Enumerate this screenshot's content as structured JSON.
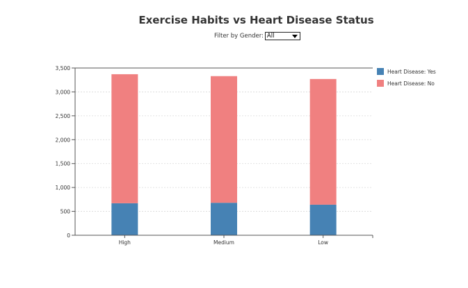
{
  "header": {
    "title": "Exercise Habits vs Heart Disease Status"
  },
  "filter": {
    "label": "Filter by Gender:",
    "selected": "All"
  },
  "colors": {
    "yes": "#4682b4",
    "no": "#f08080"
  },
  "chart_data": {
    "type": "bar",
    "stacked": true,
    "title": "Exercise Habits vs Heart Disease Status",
    "xlabel": "",
    "ylabel": "",
    "categories": [
      "High",
      "Medium",
      "Low"
    ],
    "series": [
      {
        "name": "Heart Disease: Yes",
        "values": [
          670,
          680,
          640
        ]
      },
      {
        "name": "Heart Disease: No",
        "values": [
          2700,
          2650,
          2630
        ]
      }
    ],
    "ylim": [
      0,
      3500
    ],
    "yticks": [
      0,
      500,
      1000,
      1500,
      2000,
      2500,
      3000,
      3500
    ],
    "ytick_labels": [
      "0",
      "500",
      "1,000",
      "1,500",
      "2,000",
      "2,500",
      "3,000",
      "3,500"
    ],
    "grid": true,
    "legend_position": "right"
  }
}
